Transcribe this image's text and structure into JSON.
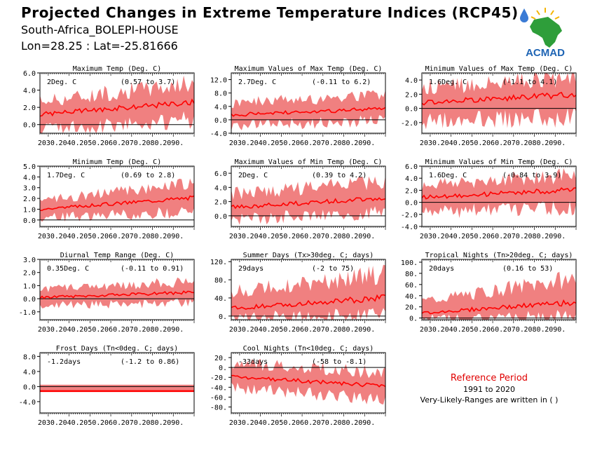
{
  "header": {
    "title": "Projected Changes in Extreme Temperature Indices (RCP45)",
    "location": "South-Africa_BOLEPI-HOUSE",
    "coords": "Lon=28.25 : Lat=-25.81666"
  },
  "logo": {
    "text": "ACMAD",
    "icon": "acmad-africa-logo"
  },
  "reference": {
    "title": "Reference Period",
    "years": "1991 to 2020",
    "note": "Very-Likely-Ranges are written in ( )"
  },
  "colors": {
    "band": "#f08080",
    "line": "#ff0000",
    "zero": "#000000",
    "ref_title": "#e00000"
  },
  "chart_data": [
    {
      "type": "area",
      "title": "Maximum Temp (Deg. C)",
      "value": "2Deg. C",
      "range": "(0.57 to 3.7)",
      "ylim": [
        -1.0,
        6.0
      ],
      "yticks": [
        0.0,
        2.0,
        4.0,
        6.0
      ],
      "ytick_labels": [
        "0.0",
        "2.0",
        "4.0",
        "6.0"
      ],
      "x_start": 2026,
      "x_end": 2100,
      "xtick_labels": [
        "2030.",
        "2040.",
        "2050.",
        "2060.",
        "2070.",
        "2080.",
        "2090."
      ],
      "mean_start": 1.2,
      "mean_end": 2.6,
      "band_start": [
        -0.3,
        2.5
      ],
      "band_end": [
        0.9,
        4.5
      ]
    },
    {
      "type": "area",
      "title": "Maximum Values of Max Temp (Deg. C)",
      "value": "2.7Deg. C",
      "range": "(-0.11 to 6.2)",
      "ylim": [
        -4.0,
        14.0
      ],
      "yticks": [
        -4.0,
        0.0,
        4.0,
        8.0,
        12.0
      ],
      "ytick_labels": [
        "-4.0",
        "0.0",
        "4.0",
        "8.0",
        "12.0"
      ],
      "x_start": 2026,
      "x_end": 2100,
      "xtick_labels": [
        "2030.",
        "2040.",
        "2050.",
        "2060.",
        "2070.",
        "2080.",
        "2090."
      ],
      "mean_start": 1.5,
      "mean_end": 3.3,
      "band_start": [
        -1.5,
        4.5
      ],
      "band_end": [
        0.5,
        7.0
      ]
    },
    {
      "type": "area",
      "title": "Minimum Values of Max Temp (Deg. C)",
      "value": "1.6Deg. C",
      "range": "(-1.1 to 4.1)",
      "ylim": [
        -3.5,
        5.0
      ],
      "yticks": [
        -2.0,
        0.0,
        2.0,
        4.0
      ],
      "ytick_labels": [
        "-2.0",
        "0.0",
        "2.0",
        "4.0"
      ],
      "x_start": 2026,
      "x_end": 2100,
      "xtick_labels": [
        "2030.",
        "2040.",
        "2050.",
        "2060.",
        "2070.",
        "2080.",
        "2090."
      ],
      "mean_start": 0.8,
      "mean_end": 2.0,
      "band_start": [
        -1.5,
        2.5
      ],
      "band_end": [
        -0.8,
        4.0
      ]
    },
    {
      "type": "area",
      "title": "Minimum Temp (Deg. C)",
      "value": "1.7Deg. C",
      "range": "(0.69 to 2.8)",
      "ylim": [
        -0.6,
        5.0
      ],
      "yticks": [
        0.0,
        1.0,
        2.0,
        3.0,
        4.0,
        5.0
      ],
      "ytick_labels": [
        "0.0",
        "1.0",
        "2.0",
        "3.0",
        "4.0",
        "5.0"
      ],
      "x_start": 2026,
      "x_end": 2100,
      "xtick_labels": [
        "2030.",
        "2040.",
        "2050.",
        "2060.",
        "2070.",
        "2080.",
        "2090."
      ],
      "mean_start": 1.0,
      "mean_end": 2.1,
      "band_start": [
        0.3,
        1.7
      ],
      "band_end": [
        1.0,
        3.2
      ]
    },
    {
      "type": "area",
      "title": "Maximum Values of Min Temp (Deg. C)",
      "value": "2Deg. C",
      "range": "(0.39 to 4.2)",
      "ylim": [
        -1.5,
        7.0
      ],
      "yticks": [
        0.0,
        2.0,
        4.0,
        6.0
      ],
      "ytick_labels": [
        "0.0",
        "2.0",
        "4.0",
        "6.0"
      ],
      "x_start": 2026,
      "x_end": 2100,
      "xtick_labels": [
        "2030.",
        "2040.",
        "2050.",
        "2060.",
        "2070.",
        "2080.",
        "2090."
      ],
      "mean_start": 1.2,
      "mean_end": 2.5,
      "band_start": [
        -0.3,
        2.8
      ],
      "band_end": [
        0.8,
        4.5
      ]
    },
    {
      "type": "area",
      "title": "Minimum Values of Min Temp (Deg. C)",
      "value": "1.6Deg. C",
      "range": "(-0.84 to 3.9)",
      "ylim": [
        -4.0,
        6.0
      ],
      "yticks": [
        -4.0,
        -2.0,
        0.0,
        2.0,
        4.0,
        6.0
      ],
      "ytick_labels": [
        "-4.0",
        "-2.0",
        "0.0",
        "2.0",
        "4.0",
        "6.0"
      ],
      "x_start": 2026,
      "x_end": 2100,
      "xtick_labels": [
        "2030.",
        "2040.",
        "2050.",
        "2060.",
        "2070.",
        "2080.",
        "2090."
      ],
      "mean_start": 0.8,
      "mean_end": 2.1,
      "band_start": [
        -1.3,
        2.5
      ],
      "band_end": [
        -0.5,
        4.2
      ]
    },
    {
      "type": "area",
      "title": "Diurnal Temp Range (Deg. C)",
      "value": "0.35Deg. C",
      "range": "(-0.11 to 0.91)",
      "ylim": [
        -1.6,
        3.0
      ],
      "yticks": [
        -1.0,
        0.0,
        1.0,
        2.0,
        3.0
      ],
      "ytick_labels": [
        "-1.0",
        "0.0",
        "1.0",
        "2.0",
        "3.0"
      ],
      "x_start": 2026,
      "x_end": 2100,
      "xtick_labels": [
        "2030.",
        "2040.",
        "2050.",
        "2060.",
        "2070.",
        "2080.",
        "2090."
      ],
      "mean_start": 0.1,
      "mean_end": 0.5,
      "band_start": [
        -0.4,
        0.6
      ],
      "band_end": [
        -0.2,
        1.2
      ]
    },
    {
      "type": "area",
      "title": "Summer Days (Tx>30deg. C; days)",
      "value": "29days",
      "range": "(-2 to 75)",
      "ylim": [
        -8,
        125
      ],
      "yticks": [
        0,
        40,
        80,
        120
      ],
      "ytick_labels": [
        "0.",
        "40.",
        "80.",
        "120."
      ],
      "x_start": 2026,
      "x_end": 2100,
      "xtick_labels": [
        "2030.",
        "2040.",
        "2050.",
        "2060.",
        "2070.",
        "2080.",
        "2090."
      ],
      "mean_start": 17,
      "mean_end": 40,
      "band_start": [
        -2,
        50
      ],
      "band_end": [
        5,
        85
      ]
    },
    {
      "type": "area",
      "title": "Tropical Nights (Tn>20deg. C; days)",
      "value": "20days",
      "range": "(0.16 to 53)",
      "ylim": [
        -3,
        105
      ],
      "yticks": [
        0,
        20,
        40,
        60,
        80,
        100
      ],
      "ytick_labels": [
        "0.",
        "20.",
        "40.",
        "60.",
        "80.",
        "100."
      ],
      "x_start": 2026,
      "x_end": 2100,
      "xtick_labels": [
        "2030.",
        "2040.",
        "2050.",
        "2060.",
        "2070.",
        "2080.",
        "2090."
      ],
      "mean_start": 9,
      "mean_end": 28,
      "band_start": [
        0,
        28
      ],
      "band_end": [
        5,
        65
      ]
    },
    {
      "type": "area",
      "title": "Frost Days (Tn<0deg. C; days)",
      "value": "-1.2days",
      "range": "(-1.2 to 0.86)",
      "ylim": [
        -7,
        9
      ],
      "yticks": [
        -4.0,
        0.0,
        4.0,
        8.0
      ],
      "ytick_labels": [
        "-4.0",
        "0.0",
        "4.0",
        "8.0"
      ],
      "x_start": 2026,
      "x_end": 2100,
      "xtick_labels": [
        "2030.",
        "2040.",
        "2050.",
        "2060.",
        "2070.",
        "2080.",
        "2090."
      ],
      "mean_start": -1.2,
      "mean_end": -1.2,
      "band_start": [
        -1.2,
        0.6
      ],
      "band_end": [
        -1.2,
        0.4
      ]
    },
    {
      "type": "area",
      "title": "Cool Nights (Tn<10deg. C; days)",
      "value": "-33days",
      "range": "(-58 to -8.1)",
      "ylim": [
        -92,
        30
      ],
      "yticks": [
        -80,
        -60,
        -40,
        -20,
        0,
        20
      ],
      "ytick_labels": [
        "-80.",
        "-60.",
        "-40.",
        "-20.",
        "0.",
        "20."
      ],
      "x_start": 2026,
      "x_end": 2100,
      "xtick_labels": [
        "2030.",
        "2040.",
        "2050.",
        "2060.",
        "2070.",
        "2080.",
        "2090."
      ],
      "mean_start": -18,
      "mean_end": -38,
      "band_start": [
        -38,
        5
      ],
      "band_end": [
        -60,
        -15
      ]
    }
  ]
}
